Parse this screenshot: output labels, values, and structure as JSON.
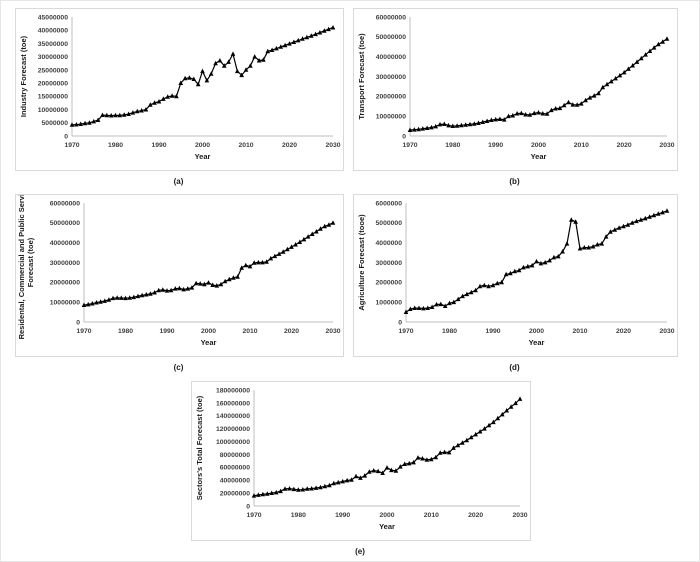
{
  "colors": {
    "background": "#ffffff",
    "panel_border": "#d9d9d9",
    "axis": "#bfbfbf",
    "tick_text": "#404040",
    "series_line": "#000000"
  },
  "chart_data": [
    {
      "id": "a",
      "caption": "(a)",
      "type": "line",
      "title": "",
      "xlabel": "Year",
      "ylabel": "Industry Forecast (toe)",
      "ylabel_lines": [
        "Industry Forecast (toe)"
      ],
      "ylim": [
        0,
        45000000
      ],
      "ytick_step": 5000000,
      "xticks": [
        1970,
        1980,
        1990,
        2000,
        2010,
        2020,
        2030
      ],
      "years": {
        "start": 1970,
        "end": 2030,
        "step": 1
      },
      "grid": false,
      "legend": "none",
      "marker": "triangle-up",
      "line_color": "#000000",
      "values": [
        4200000,
        4300000,
        4500000,
        4800000,
        5000000,
        5500000,
        6000000,
        7900000,
        7800000,
        7700000,
        7800000,
        7800000,
        8000000,
        8300000,
        8800000,
        9300000,
        9600000,
        10000000,
        11800000,
        12500000,
        13000000,
        14000000,
        14800000,
        15200000,
        15000000,
        20000000,
        21800000,
        22000000,
        21500000,
        19500000,
        24500000,
        21000000,
        23500000,
        27500000,
        28500000,
        26500000,
        28000000,
        31000000,
        24500000,
        23000000,
        25000000,
        26500000,
        30000000,
        28500000,
        28800000,
        32000000,
        32500000,
        33100000,
        33700000,
        34300000,
        34900000,
        35500000,
        36100000,
        36700000,
        37300000,
        37900000,
        38500000,
        39100000,
        39800000,
        40400000,
        41000000
      ]
    },
    {
      "id": "b",
      "caption": "(b)",
      "type": "line",
      "title": "",
      "xlabel": "Year",
      "ylabel": "Transport Forecast (toe)",
      "ylabel_lines": [
        "Transport Forecast (toe)"
      ],
      "ylim": [
        0,
        60000000
      ],
      "ytick_step": 10000000,
      "xticks": [
        1970,
        1980,
        1990,
        2000,
        2010,
        2020,
        2030
      ],
      "years": {
        "start": 1970,
        "end": 2030,
        "step": 1
      },
      "grid": false,
      "legend": "none",
      "marker": "triangle-up",
      "line_color": "#000000",
      "values": [
        3000000,
        3200000,
        3400000,
        3700000,
        4000000,
        4300000,
        4800000,
        5800000,
        6000000,
        5300000,
        5000000,
        5100000,
        5400000,
        5600000,
        5900000,
        6100000,
        6500000,
        7000000,
        7500000,
        8000000,
        8300000,
        8500000,
        8200000,
        10000000,
        10300000,
        11300000,
        11500000,
        10800000,
        10700000,
        11500000,
        11800000,
        11300000,
        11200000,
        13000000,
        13800000,
        14000000,
        15500000,
        17000000,
        15800000,
        15700000,
        16300000,
        18000000,
        19300000,
        20300000,
        21500000,
        24500000,
        26000000,
        27500000,
        29000000,
        30500000,
        32000000,
        33800000,
        35500000,
        37300000,
        39200000,
        41000000,
        42800000,
        44500000,
        46200000,
        47500000,
        49000000
      ]
    },
    {
      "id": "c",
      "caption": "(c)",
      "type": "line",
      "title": "",
      "xlabel": "Year",
      "ylabel": "Residental, Commercial and Public Service Forecast (toe)",
      "ylabel_lines": [
        "Residental, Commercial and Public Service",
        "Forecast (toe)"
      ],
      "ylim": [
        0,
        60000000
      ],
      "ytick_step": 10000000,
      "xticks": [
        1970,
        1980,
        1990,
        2000,
        2010,
        2020,
        2030
      ],
      "years": {
        "start": 1970,
        "end": 2030,
        "step": 1
      },
      "grid": false,
      "legend": "none",
      "marker": "triangle-up",
      "line_color": "#000000",
      "values": [
        8500000,
        8800000,
        9300000,
        9800000,
        10200000,
        10600000,
        11200000,
        12000000,
        12200000,
        12100000,
        12000000,
        12200000,
        12500000,
        13000000,
        13400000,
        13800000,
        14200000,
        14800000,
        16000000,
        16200000,
        15800000,
        16000000,
        16800000,
        17000000,
        16400000,
        16800000,
        17300000,
        19500000,
        19300000,
        19000000,
        19800000,
        18600000,
        18300000,
        19000000,
        20500000,
        21500000,
        22300000,
        22800000,
        27300000,
        28600000,
        28000000,
        29800000,
        30000000,
        30000000,
        30300000,
        32000000,
        33200000,
        34300000,
        35400000,
        36600000,
        37800000,
        39000000,
        40300000,
        41600000,
        43000000,
        44300000,
        45600000,
        47000000,
        48200000,
        49000000,
        50000000
      ]
    },
    {
      "id": "d",
      "caption": "(d)",
      "type": "line",
      "title": "",
      "xlabel": "Year",
      "ylabel": "Agriculture Forecast (tooe)",
      "ylabel_lines": [
        "Agriculture Forecast (tooe)"
      ],
      "ylim": [
        0,
        6000000
      ],
      "ytick_step": 1000000,
      "xticks": [
        1970,
        1980,
        1990,
        2000,
        2010,
        2020,
        2030
      ],
      "years": {
        "start": 1970,
        "end": 2030,
        "step": 1
      },
      "grid": false,
      "legend": "none",
      "marker": "triangle-up",
      "line_color": "#000000",
      "values": [
        500000,
        650000,
        700000,
        700000,
        680000,
        700000,
        750000,
        880000,
        900000,
        800000,
        950000,
        1000000,
        1150000,
        1300000,
        1400000,
        1500000,
        1600000,
        1800000,
        1850000,
        1800000,
        1850000,
        1950000,
        2000000,
        2400000,
        2450000,
        2550000,
        2600000,
        2750000,
        2800000,
        2850000,
        3050000,
        2950000,
        3000000,
        3100000,
        3250000,
        3300000,
        3550000,
        3950000,
        5150000,
        5050000,
        3700000,
        3750000,
        3750000,
        3800000,
        3900000,
        3950000,
        4300000,
        4550000,
        4650000,
        4750000,
        4820000,
        4900000,
        5000000,
        5080000,
        5150000,
        5220000,
        5300000,
        5380000,
        5450000,
        5520000,
        5600000
      ]
    },
    {
      "id": "e",
      "caption": "(e)",
      "type": "line",
      "title": "",
      "xlabel": "Year",
      "ylabel": "Sectors's Total Forecast (toe)",
      "ylabel_lines": [
        "Sectors's Total Forecast (toe)"
      ],
      "ylim": [
        0,
        180000000
      ],
      "ytick_step": 20000000,
      "xticks": [
        1970,
        1980,
        1990,
        2000,
        2010,
        2020,
        2030
      ],
      "years": {
        "start": 1970,
        "end": 2030,
        "step": 1
      },
      "grid": false,
      "legend": "none",
      "marker": "triangle-up",
      "line_color": "#000000",
      "values": [
        16000000,
        17000000,
        18000000,
        19000000,
        20000000,
        21000000,
        23000000,
        26500000,
        27000000,
        26000000,
        25000000,
        25500000,
        26500000,
        27000000,
        28000000,
        29000000,
        30500000,
        32000000,
        35000000,
        36500000,
        38000000,
        39500000,
        40500000,
        46000000,
        43500000,
        47000000,
        53000000,
        55000000,
        54000000,
        51000000,
        59500000,
        55500000,
        54500000,
        61000000,
        65000000,
        66000000,
        67500000,
        75000000,
        73500000,
        71500000,
        72500000,
        75500000,
        82500000,
        83500000,
        83000000,
        90000000,
        94000000,
        98000000,
        102000000,
        106500000,
        111000000,
        115500000,
        120000000,
        125000000,
        130000000,
        136000000,
        142000000,
        148000000,
        154000000,
        159500000,
        166000000
      ]
    }
  ]
}
